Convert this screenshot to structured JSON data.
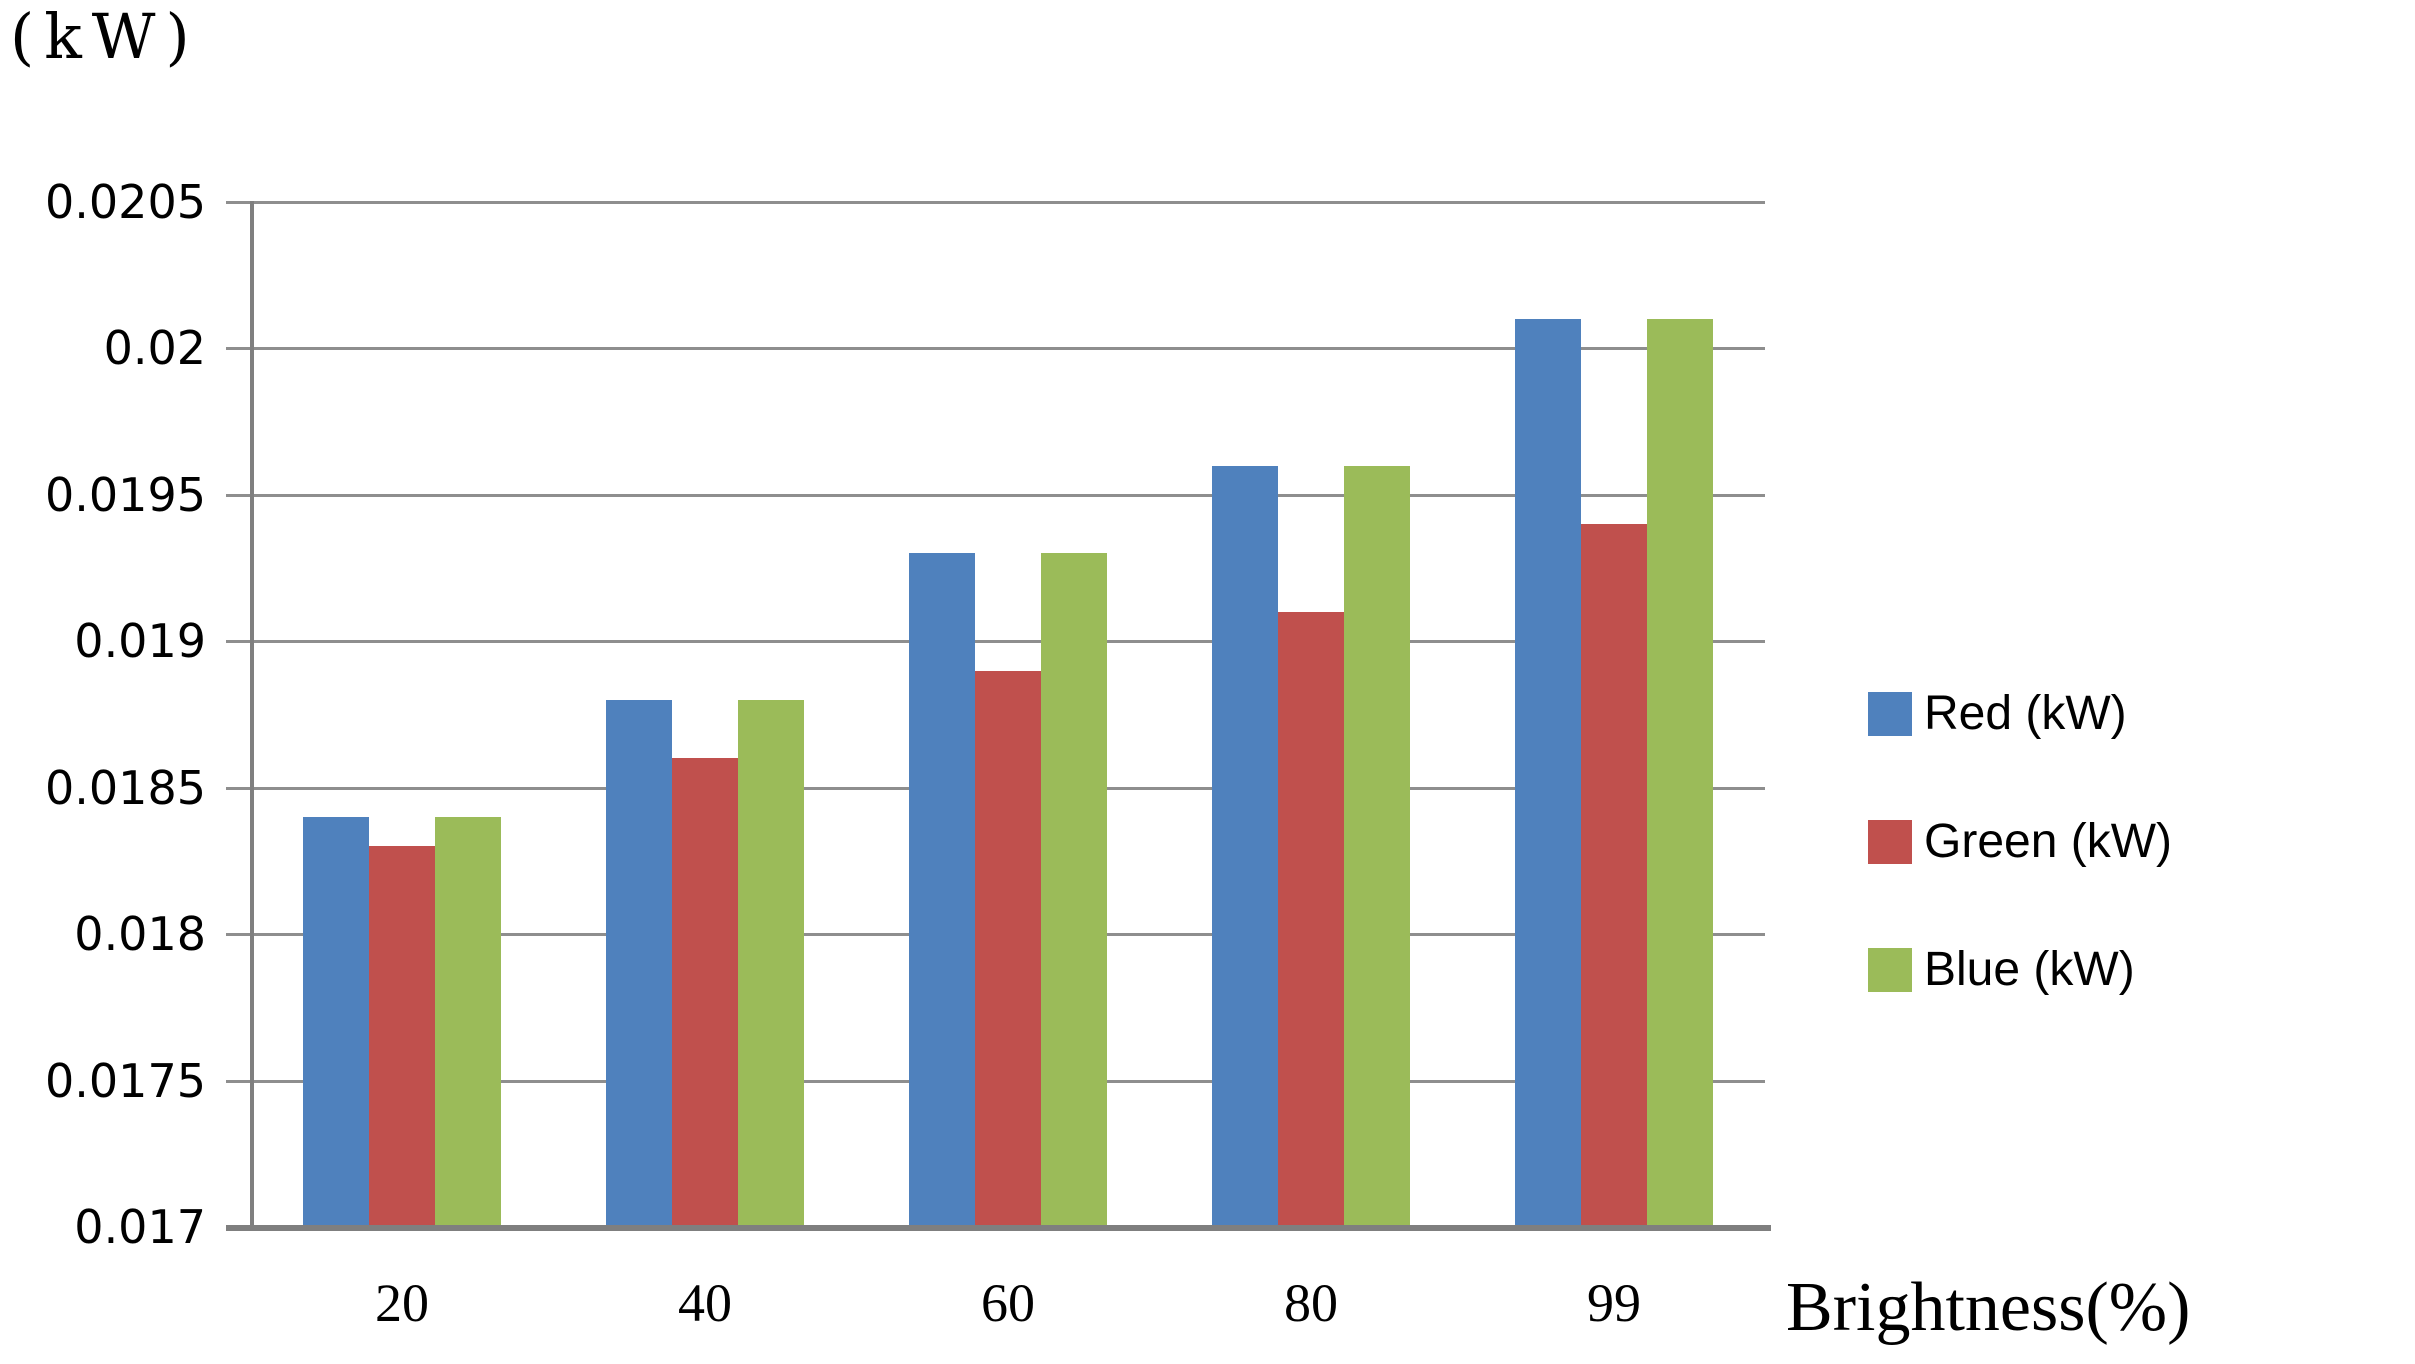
{
  "page": {
    "background": "#ffffff"
  },
  "chart_data": {
    "type": "bar",
    "title": "",
    "ylabel": "(kW)",
    "xlabel": "Brightness(%)",
    "categories": [
      "20",
      "40",
      "60",
      "80",
      "99"
    ],
    "series": [
      {
        "name": "Red (kW)",
        "color": "#4F81BD",
        "values": [
          0.0184,
          0.0188,
          0.0193,
          0.0196,
          0.0201
        ]
      },
      {
        "name": "Green (kW)",
        "color": "#C0504D",
        "values": [
          0.0183,
          0.0186,
          0.0189,
          0.0191,
          0.0194
        ]
      },
      {
        "name": "Blue (kW)",
        "color": "#9BBB59",
        "values": [
          0.0184,
          0.0188,
          0.0193,
          0.0196,
          0.0201
        ]
      }
    ],
    "ylim": [
      0.017,
      0.0205
    ],
    "ytick_step": 0.0005,
    "yticks": [
      "0.0205",
      "0.02",
      "0.0195",
      "0.019",
      "0.0185",
      "0.018",
      "0.0175",
      "0.017"
    ],
    "grid": true,
    "legend_position": "right",
    "grid_color": "#8e8e8e",
    "axis_color": "#7f7f7f",
    "tick_color": "#000000"
  }
}
